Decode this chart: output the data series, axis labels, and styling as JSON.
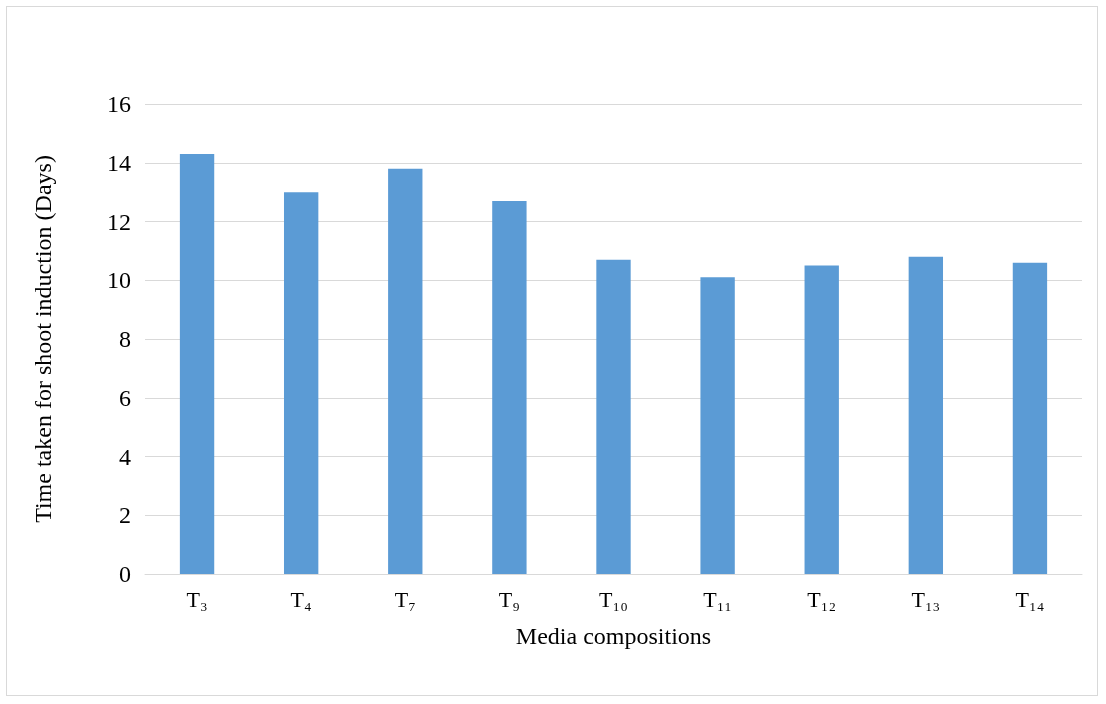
{
  "chart_data": {
    "type": "bar",
    "xlabel": "Media compositions",
    "ylabel": "Time taken for shoot induction (Days)",
    "categories": [
      "T₃",
      "T₄",
      "T₇",
      "T₉",
      "T₁₀",
      "T₁₁",
      "T₁₂",
      "T₁₃",
      "T₁₄"
    ],
    "values": [
      14.3,
      13.0,
      13.8,
      12.7,
      10.7,
      10.1,
      10.5,
      10.8,
      10.6
    ],
    "color": "#5b9bd5",
    "ylim": [
      0,
      16
    ],
    "yticks": [
      0,
      2,
      4,
      6,
      8,
      10,
      12,
      14,
      16
    ],
    "grid": "y"
  }
}
